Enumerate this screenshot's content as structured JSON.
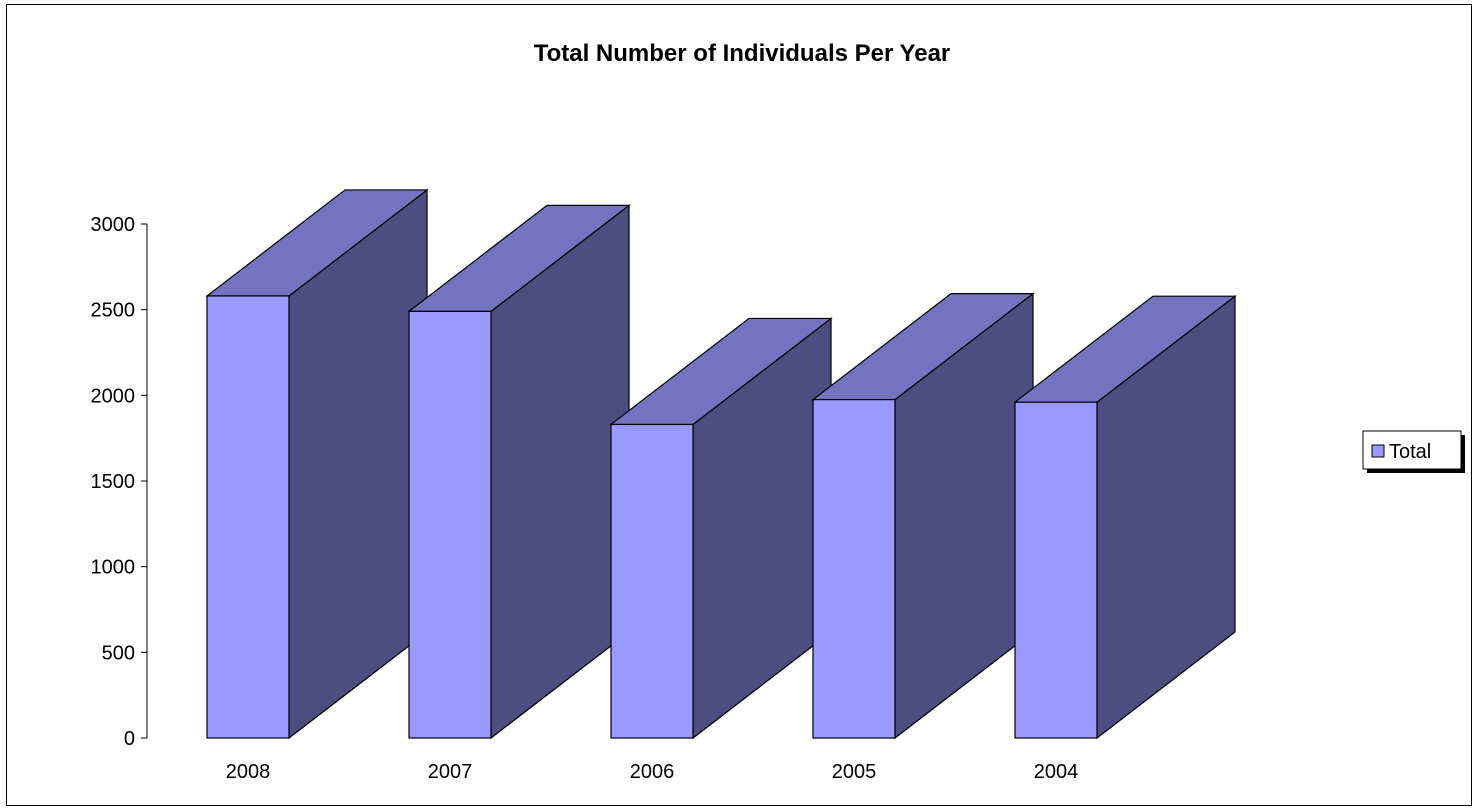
{
  "chart_data": {
    "type": "bar",
    "title": "Total Number of Individuals Per Year",
    "xlabel": "",
    "ylabel": "",
    "categories": [
      "2008",
      "2007",
      "2006",
      "2005",
      "2004"
    ],
    "series": [
      {
        "name": "Total",
        "values": [
          2580,
          2490,
          1830,
          1975,
          1960
        ]
      }
    ],
    "ylim": [
      0,
      3000
    ],
    "yticks": [
      0,
      500,
      1000,
      1500,
      2000,
      2500,
      3000
    ],
    "grid": false,
    "legend": "right",
    "style": "3d-box"
  },
  "colors": {
    "bar_front": "#9999ff",
    "bar_top": "#7373c0",
    "bar_side": "#4d4d80",
    "outline": "#000000"
  }
}
